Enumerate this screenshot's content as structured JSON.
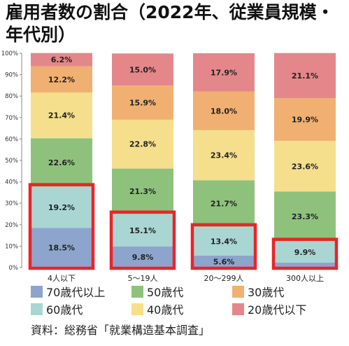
{
  "title": "雇用者数の割合（2022年、従業員規模・年代別）",
  "source": "資料：総務省「就業構造基本調査」",
  "colors": {
    "70歳代以上": "#8da5cc",
    "60歳代": "#a9d6d3",
    "50歳代": "#8ec27c",
    "40歳代": "#f5df8c",
    "30歳代": "#f0b071",
    "20歳代以下": "#e4878a",
    "highlight": "#e8252a"
  },
  "legend": [
    "70歳代以上",
    "50歳代",
    "30歳代",
    "60歳代",
    "40歳代",
    "20歳代以下"
  ],
  "chart_data": {
    "type": "bar",
    "stacked": true,
    "categories": [
      "4人以下",
      "5～19人",
      "20～299人",
      "300人以上"
    ],
    "series": [
      {
        "name": "70歳代以上",
        "values": [
          18.5,
          9.8,
          5.6,
          2.3
        ],
        "labels": [
          "18.5%",
          "9.8%",
          "5.6%",
          ""
        ]
      },
      {
        "name": "60歳代",
        "values": [
          19.2,
          15.1,
          13.4,
          9.9
        ],
        "labels": [
          "19.2%",
          "15.1%",
          "13.4%",
          "9.9%"
        ]
      },
      {
        "name": "50歳代",
        "values": [
          22.6,
          21.3,
          21.7,
          23.3
        ],
        "labels": [
          "22.6%",
          "21.3%",
          "21.7%",
          "23.3%"
        ]
      },
      {
        "name": "40歳代",
        "values": [
          21.4,
          22.8,
          23.4,
          23.6
        ],
        "labels": [
          "21.4%",
          "22.8%",
          "23.4%",
          "23.6%"
        ]
      },
      {
        "name": "30歳代",
        "values": [
          12.2,
          15.9,
          18.0,
          19.9
        ],
        "labels": [
          "12.2%",
          "15.9%",
          "18.0%",
          "19.9%"
        ]
      },
      {
        "name": "20歳代以下",
        "values": [
          6.2,
          15.0,
          17.9,
          21.1
        ],
        "labels": [
          "6.2%",
          "15.0%",
          "17.9%",
          "21.1%"
        ]
      }
    ],
    "highlighted_series": [
      "70歳代以上",
      "60歳代"
    ],
    "yticks": [
      "0%",
      "10%",
      "20%",
      "30%",
      "40%",
      "50%",
      "60%",
      "70%",
      "80%",
      "90%",
      "100%"
    ],
    "ylim": [
      0,
      100
    ],
    "grid": false,
    "legend_position": "bottom"
  }
}
